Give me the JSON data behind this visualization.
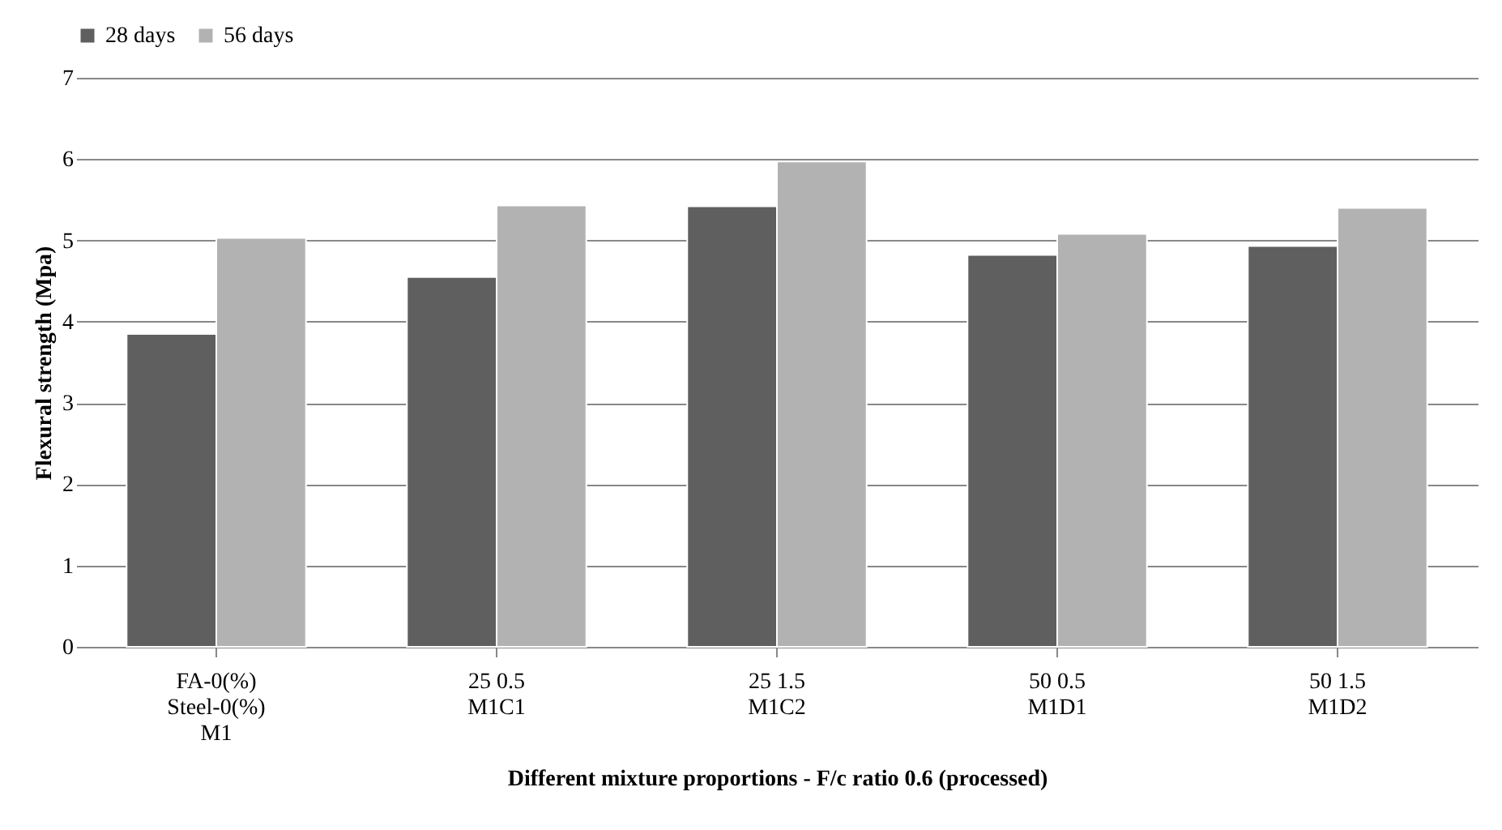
{
  "chart_data": {
    "type": "bar",
    "categories": [
      "FA-0(%)\nSteel-0(%)\nM1",
      "25 0.5\nM1C1",
      "25 1.5\nM1C2",
      "50 0.5\nM1D1",
      "50 1.5\nM1D2"
    ],
    "series": [
      {
        "name": "28 days",
        "color": "#5f5f5f",
        "values": [
          3.85,
          4.55,
          5.42,
          4.82,
          4.93
        ]
      },
      {
        "name": "56 days",
        "color": "#b2b2b2",
        "values": [
          5.03,
          5.43,
          5.97,
          5.08,
          5.4
        ]
      }
    ],
    "xlabel": "Different mixture proportions - F/c ratio 0.6 (processed)",
    "ylabel": "Flexural strength (Mpa)",
    "ylim": [
      0,
      7
    ],
    "yticks": [
      0,
      1,
      2,
      3,
      4,
      5,
      6,
      7
    ],
    "grid": "y",
    "legend": "top"
  }
}
